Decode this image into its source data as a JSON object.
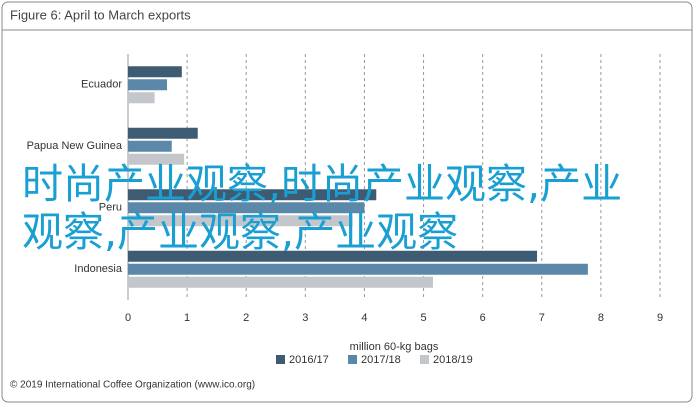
{
  "chart_data": {
    "type": "hbar",
    "title": "Figure 6: April to March exports",
    "xlabel": "million 60-kg bags",
    "footer": "© 2019 International Coffee Organization (www.ico.org)",
    "watermark": "时尚产业观察,时尚产业观察,产业观察,产业观察,产业观察",
    "categories": [
      "Ecuador",
      "Papua New Guinea",
      "Peru",
      "Indonesia"
    ],
    "series": [
      {
        "name": "2016/17",
        "color": "#3e5b74",
        "values": [
          0.91,
          1.18,
          4.2,
          6.92
        ]
      },
      {
        "name": "2017/18",
        "color": "#5b87a8",
        "values": [
          0.66,
          0.74,
          4.0,
          7.78
        ]
      },
      {
        "name": "2018/19",
        "color": "#c3c6ca",
        "values": [
          0.45,
          0.95,
          3.8,
          5.16
        ]
      }
    ],
    "xlim": [
      0,
      9
    ],
    "xticks": [
      0,
      1,
      2,
      3,
      4,
      5,
      6,
      7,
      8,
      9
    ],
    "grid": true
  }
}
